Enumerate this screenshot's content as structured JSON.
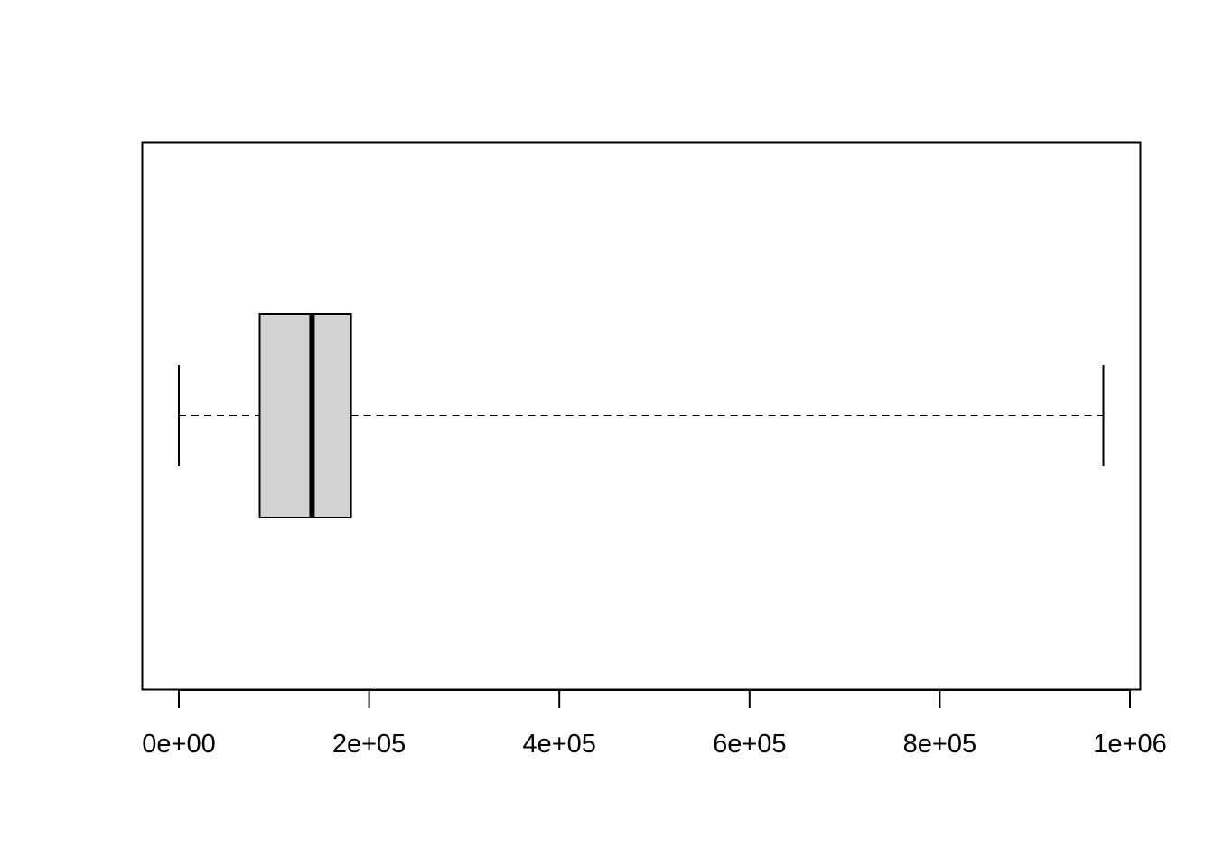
{
  "chart_data": {
    "type": "boxplot",
    "orientation": "horizontal",
    "title": "",
    "xlabel": "",
    "ylabel": "",
    "xlim": [
      -20000,
      1005000
    ],
    "grid": false,
    "legend": "none",
    "box": {
      "min": 0,
      "q1": 85000,
      "median": 140000,
      "q3": 181000,
      "max": 972000
    },
    "ticks": [
      {
        "value": 0,
        "label": "0e+00"
      },
      {
        "value": 200000,
        "label": "2e+05"
      },
      {
        "value": 400000,
        "label": "4e+05"
      },
      {
        "value": 600000,
        "label": "6e+05"
      },
      {
        "value": 800000,
        "label": "8e+05"
      },
      {
        "value": 1000000,
        "label": "1e+06"
      }
    ],
    "colors": {
      "box_fill": "#d3d3d3",
      "stroke": "#000000",
      "background": "#ffffff"
    }
  }
}
